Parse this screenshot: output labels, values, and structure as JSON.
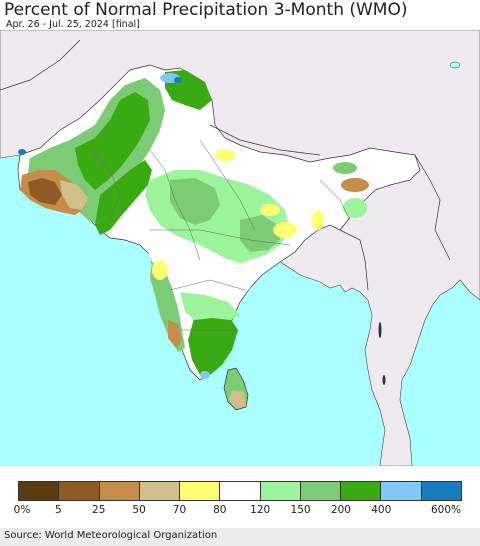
{
  "header": {
    "title": "Percent of Normal Precipitation 3-Month (WMO)",
    "subtitle": "Apr. 26 - Jul. 25, 2024 [final]"
  },
  "legend": {
    "colors": [
      "#5a3b12",
      "#8f5a24",
      "#c48e4a",
      "#d2c08a",
      "#ffff70",
      "#ffffff",
      "#9cf59c",
      "#7ccc76",
      "#3aaa12",
      "#80c8f8",
      "#1a7cc0"
    ],
    "labels": [
      "0%",
      "5",
      "25",
      "50",
      "70",
      "80",
      "120",
      "150",
      "200",
      "400",
      "600%"
    ]
  },
  "footer": {
    "source": "Source: World Meteorological Organization"
  },
  "map": {
    "ocean_color": "#aaffff",
    "land_color": "#efeaef"
  }
}
